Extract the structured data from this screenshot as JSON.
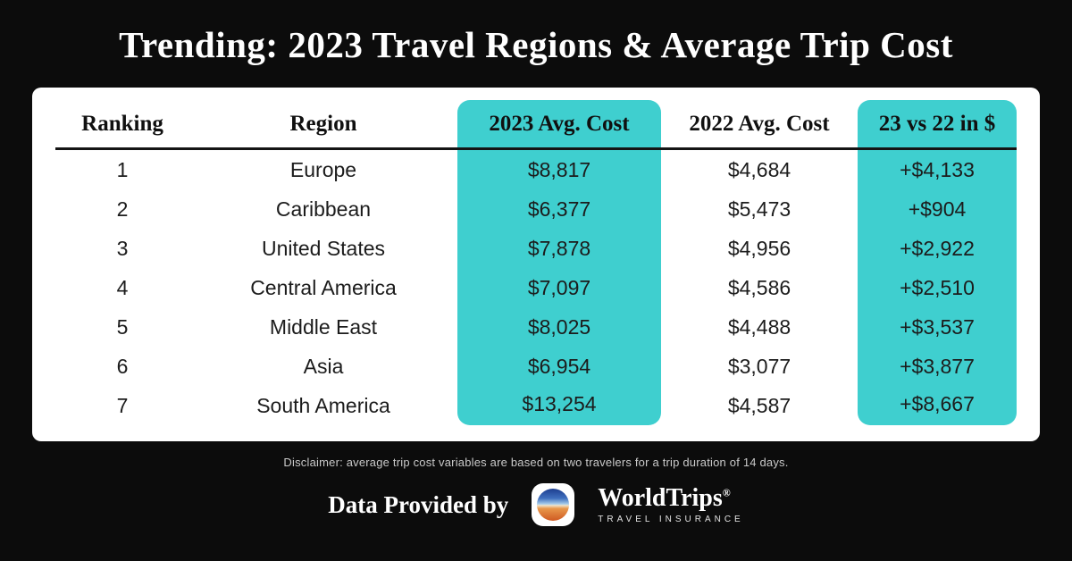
{
  "title": "Trending: 2023 Travel Regions & Average Trip Cost",
  "colors": {
    "background": "#0c0c0c",
    "card": "#ffffff",
    "highlight_teal": "#3fcfcf",
    "text_dark": "#1c1c1c",
    "text_light": "#ffffff"
  },
  "table": {
    "headers": [
      "Ranking",
      "Region",
      "2023 Avg. Cost",
      "2022 Avg. Cost",
      "23 vs 22 in $"
    ],
    "rows": [
      [
        "1",
        "Europe",
        "$8,817",
        "$4,684",
        "+$4,133"
      ],
      [
        "2",
        "Caribbean",
        "$6,377",
        "$5,473",
        "+$904"
      ],
      [
        "3",
        "United States",
        "$7,878",
        "$4,956",
        "+$2,922"
      ],
      [
        "4",
        "Central America",
        "$7,097",
        "$4,586",
        "+$2,510"
      ],
      [
        "5",
        "Middle East",
        "$8,025",
        "$4,488",
        "+$3,537"
      ],
      [
        "6",
        "Asia",
        "$6,954",
        "$3,077",
        "+$3,877"
      ],
      [
        "7",
        "South America",
        "$13,254",
        "$4,587",
        "+$8,667"
      ]
    ]
  },
  "disclaimer": "Disclaimer: average trip cost variables are based on two travelers for a trip duration of 14 days.",
  "footer": {
    "provided_by": "Data Provided by",
    "brand": "WorldTrips",
    "registered_mark": "®",
    "tagline": "TRAVEL INSURANCE",
    "logo": "worldtrips-globe-gradient-icon"
  },
  "chart_data": {
    "type": "table",
    "title": "Trending: 2023 Travel Regions & Average Trip Cost",
    "columns": [
      "Ranking",
      "Region",
      "2023 Avg. Cost",
      "2022 Avg. Cost",
      "23 vs 22 in $"
    ],
    "highlighted_columns": [
      "2023 Avg. Cost",
      "23 vs 22 in $"
    ],
    "rows": [
      {
        "ranking": 1,
        "region": "Europe",
        "avg_cost_2023": 8817,
        "avg_cost_2022": 4684,
        "diff_23_vs_22": 4133
      },
      {
        "ranking": 2,
        "region": "Caribbean",
        "avg_cost_2023": 6377,
        "avg_cost_2022": 5473,
        "diff_23_vs_22": 904
      },
      {
        "ranking": 3,
        "region": "United States",
        "avg_cost_2023": 7878,
        "avg_cost_2022": 4956,
        "diff_23_vs_22": 2922
      },
      {
        "ranking": 4,
        "region": "Central America",
        "avg_cost_2023": 7097,
        "avg_cost_2022": 4586,
        "diff_23_vs_22": 2510
      },
      {
        "ranking": 5,
        "region": "Middle East",
        "avg_cost_2023": 8025,
        "avg_cost_2022": 4488,
        "diff_23_vs_22": 3537
      },
      {
        "ranking": 6,
        "region": "Asia",
        "avg_cost_2023": 6954,
        "avg_cost_2022": 3077,
        "diff_23_vs_22": 3877
      },
      {
        "ranking": 7,
        "region": "South America",
        "avg_cost_2023": 13254,
        "avg_cost_2022": 4587,
        "diff_23_vs_22": 8667
      }
    ],
    "units": "USD",
    "note": "average trip cost variables are based on two travelers for a trip duration of 14 days"
  }
}
